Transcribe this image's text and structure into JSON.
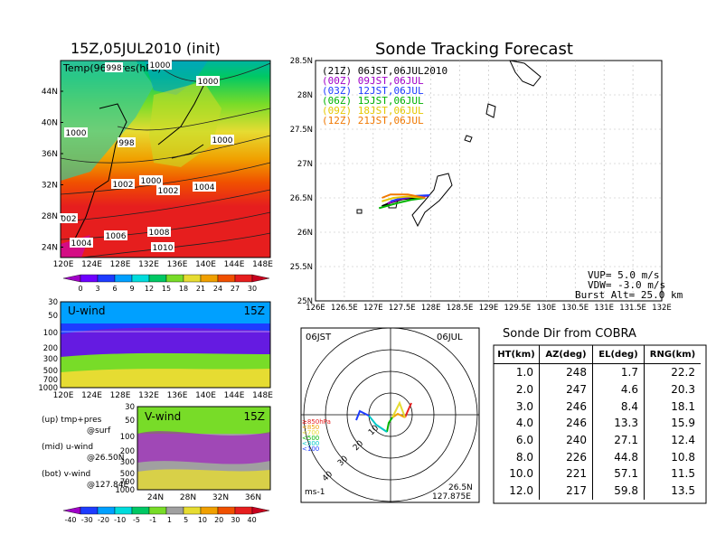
{
  "left_top": {
    "title": "15Z,05JUL2010 (init)",
    "label": "Temp(96+Pres(hPa)",
    "lat_ticks": [
      "44N",
      "40N",
      "36N",
      "32N",
      "28N",
      "24N"
    ],
    "lon_ticks": [
      "120E",
      "124E",
      "128E",
      "132E",
      "136E",
      "140E",
      "144E",
      "148E"
    ],
    "isobar_labels": [
      "998",
      "1000",
      "1000",
      "1000",
      "1000",
      "998",
      "1002",
      "1000",
      "1002",
      "1004",
      "002",
      "1006",
      "1008",
      "1004",
      "1010"
    ],
    "colorbar_labels": [
      "0",
      "3",
      "6",
      "9",
      "12",
      "15",
      "18",
      "21",
      "24",
      "27",
      "30"
    ],
    "colorbar_colors": [
      "#a000c8",
      "#6e00ff",
      "#1e3cff",
      "#00a0ff",
      "#00dcdc",
      "#00c864",
      "#78dc28",
      "#e6dc32",
      "#f0a000",
      "#f05000",
      "#e61e1e",
      "#c8001e"
    ]
  },
  "u_panel": {
    "label": "U-wind",
    "time": "15Z",
    "p_ticks": [
      "30",
      "50",
      "100",
      "200",
      "300",
      "500",
      "700",
      "1000"
    ],
    "lon_ticks": [
      "120E",
      "124E",
      "128E",
      "132E",
      "136E",
      "140E",
      "144E",
      "148E"
    ]
  },
  "v_panel": {
    "label": "V-wind",
    "time": "15Z",
    "p_ticks": [
      "30",
      "50",
      "100",
      "200",
      "300",
      "500",
      "700",
      "1000"
    ],
    "lat_ticks": [
      "24N",
      "28N",
      "32N",
      "36N"
    ]
  },
  "wind_colorbar": {
    "labels": [
      "-40",
      "-30",
      "-20",
      "-10",
      "-5",
      "-1",
      "1",
      "5",
      "10",
      "20",
      "30",
      "40"
    ],
    "colors": [
      "#a000c8",
      "#1e3cff",
      "#00a0ff",
      "#00dcdc",
      "#00c864",
      "#78dc28",
      "#a0a0a0",
      "#e6dc32",
      "#f0a000",
      "#f05000",
      "#e61e1e",
      "#c8001e"
    ]
  },
  "notes": [
    {
      "a": "(up) tmp+pres",
      "b": "@surf"
    },
    {
      "a": "(mid) u-wind",
      "b": "@26.50N"
    },
    {
      "a": "(bot) v-wind",
      "b": "@127.84E"
    }
  ],
  "track": {
    "title": "Sonde Tracking Forecast",
    "lat_ticks": [
      "28.5N",
      "28N",
      "27.5N",
      "27N",
      "26.5N",
      "26N",
      "25.5N",
      "25N"
    ],
    "lon_ticks": [
      "126E",
      "126.5E",
      "127E",
      "127.5E",
      "128E",
      "128.5E",
      "129E",
      "129.5E",
      "130E",
      "130.5E",
      "131E",
      "131.5E",
      "132E"
    ],
    "legend": [
      {
        "text": "(21Z)  06JST,06JUL2010",
        "color": "#000000"
      },
      {
        "text": "(00Z)  09JST,06JUL",
        "color": "#a000c8"
      },
      {
        "text": "(03Z)  12JST,06JUL",
        "color": "#1e3cff"
      },
      {
        "text": "(06Z)  15JST,06JUL",
        "color": "#00b400"
      },
      {
        "text": "(09Z)  18JST,06JUL",
        "color": "#e6c800"
      },
      {
        "text": "(12Z)  21JST,06JUL",
        "color": "#f07800"
      }
    ],
    "vup": "VUP=  5.0 m/s",
    "vdw": "VDW= -3.0 m/s",
    "burst": "Burst Alt=  25.0 km"
  },
  "polar": {
    "time_label": "06JST",
    "date_label": "06JUL",
    "unit": "ms-1",
    "lat": "26.5N",
    "lon": "127.875E",
    "ring_labels": [
      "10",
      "20",
      "30",
      "40"
    ],
    "levels": [
      {
        "text": "≥850hPa",
        "color": "#e61e1e"
      },
      {
        "text": "<850",
        "color": "#f0a000"
      },
      {
        "text": "<700",
        "color": "#e6dc32"
      },
      {
        "text": "<500",
        "color": "#00b400"
      },
      {
        "text": "<300",
        "color": "#00c8c8"
      },
      {
        "text": "<100",
        "color": "#1e3cff"
      }
    ]
  },
  "direction_table": {
    "title": "Sonde Dir from COBRA",
    "headers": [
      "HT(km)",
      "AZ(deg)",
      "EL(deg)",
      "RNG(km)"
    ],
    "rows": [
      [
        "1.0",
        "248",
        "1.7",
        "22.2"
      ],
      [
        "2.0",
        "247",
        "4.6",
        "20.3"
      ],
      [
        "3.0",
        "246",
        "8.4",
        "18.1"
      ],
      [
        "4.0",
        "246",
        "13.3",
        "15.9"
      ],
      [
        "6.0",
        "240",
        "27.1",
        "12.4"
      ],
      [
        "8.0",
        "226",
        "44.8",
        "10.8"
      ],
      [
        "10.0",
        "221",
        "57.1",
        "11.5"
      ],
      [
        "12.0",
        "217",
        "59.8",
        "13.5"
      ]
    ]
  },
  "chart_data": [
    {
      "type": "table",
      "title": "Sonde Dir from COBRA",
      "columns": [
        "HT(km)",
        "AZ(deg)",
        "EL(deg)",
        "RNG(km)"
      ],
      "rows": [
        [
          1.0,
          248,
          1.7,
          22.2
        ],
        [
          2.0,
          247,
          4.6,
          20.3
        ],
        [
          3.0,
          246,
          8.4,
          18.1
        ],
        [
          4.0,
          246,
          13.3,
          15.9
        ],
        [
          6.0,
          240,
          27.1,
          12.4
        ],
        [
          8.0,
          226,
          44.8,
          10.8
        ],
        [
          10.0,
          221,
          57.1,
          11.5
        ],
        [
          12.0,
          217,
          59.8,
          13.5
        ]
      ]
    },
    {
      "type": "line",
      "title": "Sonde Tracking Forecast",
      "xlim": [
        126,
        132
      ],
      "ylim": [
        25,
        28.5
      ],
      "series": [
        {
          "name": "(21Z)  06JST,06JUL2010",
          "x": [
            127.9,
            127.7,
            127.5,
            127.3,
            127.15
          ],
          "y": [
            26.52,
            26.5,
            26.48,
            26.43,
            26.38
          ]
        },
        {
          "name": "(00Z)  09JST,06JUL",
          "x": [
            127.95,
            127.7,
            127.45,
            127.25
          ],
          "y": [
            26.53,
            26.52,
            26.48,
            26.42
          ]
        },
        {
          "name": "(03Z)  12JST,06JUL",
          "x": [
            127.98,
            127.75,
            127.5,
            127.3
          ],
          "y": [
            26.54,
            26.53,
            26.5,
            26.45
          ]
        },
        {
          "name": "(06Z)  15JST,06JUL",
          "x": [
            127.9,
            127.65,
            127.4,
            127.1
          ],
          "y": [
            26.5,
            26.47,
            26.42,
            26.35
          ]
        },
        {
          "name": "(09Z)  18JST,06JUL",
          "x": [
            127.9,
            127.6,
            127.35,
            127.15
          ],
          "y": [
            26.5,
            26.52,
            26.5,
            26.45
          ]
        },
        {
          "name": "(12Z)  21JST,06JUL",
          "x": [
            127.9,
            127.6,
            127.3,
            127.15
          ],
          "y": [
            26.5,
            26.55,
            26.55,
            26.5
          ]
        }
      ]
    }
  ]
}
